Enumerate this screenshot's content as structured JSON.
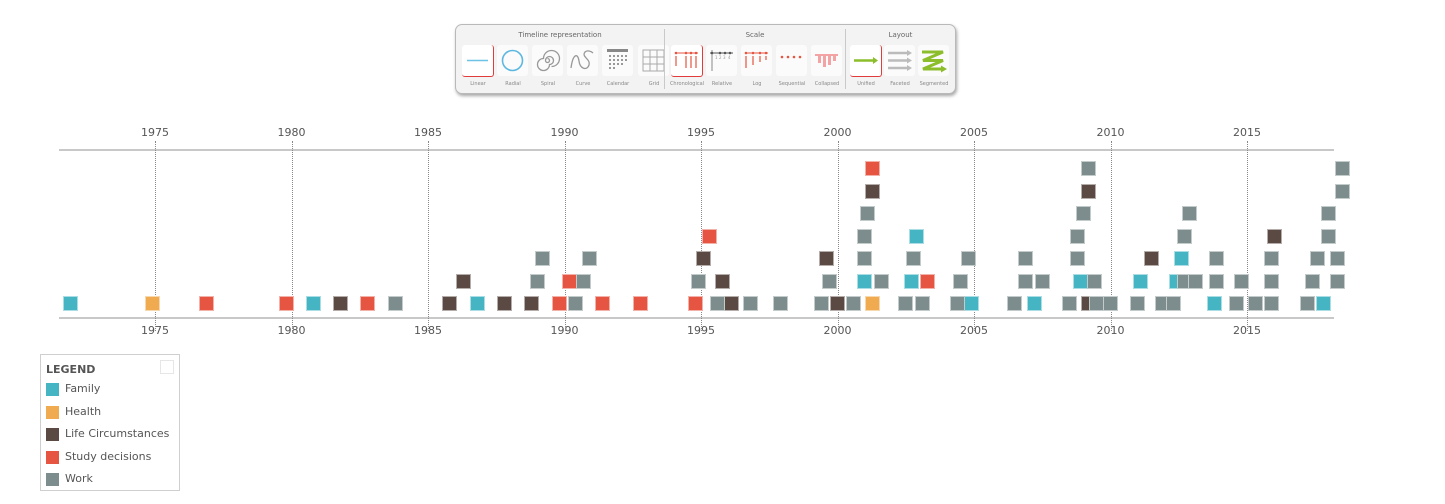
{
  "toolbar": {
    "groups": [
      {
        "title": "Timeline representation",
        "buttons": [
          {
            "label": "Linear",
            "icon": "linear-icon",
            "selected": true
          },
          {
            "label": "Radial",
            "icon": "radial-icon",
            "selected": false
          },
          {
            "label": "Spiral",
            "icon": "spiral-icon",
            "selected": false
          },
          {
            "label": "Curve",
            "icon": "curve-icon",
            "selected": false
          },
          {
            "label": "Calendar",
            "icon": "calendar-icon",
            "selected": false
          },
          {
            "label": "Grid",
            "icon": "grid-icon",
            "selected": false
          }
        ]
      },
      {
        "title": "Scale",
        "buttons": [
          {
            "label": "Chronological",
            "icon": "chronological-icon",
            "selected": true
          },
          {
            "label": "Relative",
            "icon": "relative-icon",
            "selected": false
          },
          {
            "label": "Log",
            "icon": "log-icon",
            "selected": false
          },
          {
            "label": "Sequential",
            "icon": "sequential-icon",
            "selected": false
          },
          {
            "label": "Collapsed",
            "icon": "collapsed-icon",
            "selected": false
          }
        ]
      },
      {
        "title": "Layout",
        "buttons": [
          {
            "label": "Unified",
            "icon": "unified-icon",
            "selected": true
          },
          {
            "label": "Faceted",
            "icon": "faceted-icon",
            "selected": false
          },
          {
            "label": "Segmented",
            "icon": "segmented-icon",
            "selected": false
          }
        ]
      }
    ]
  },
  "colors": {
    "Family": "#45b5c4",
    "Health": "#f0aa4f",
    "Life Circumstances": "#5b4a43",
    "Study decisions": "#e55541",
    "Work": "#7d8c8c",
    "accent_selected": "#e23b3b"
  },
  "legend": {
    "title": "LEGEND",
    "items": [
      {
        "label": "Family",
        "color": "#45b5c4"
      },
      {
        "label": "Health",
        "color": "#f0aa4f"
      },
      {
        "label": "Life Circumstances",
        "color": "#5b4a43"
      },
      {
        "label": "Study decisions",
        "color": "#e55541"
      },
      {
        "label": "Work",
        "color": "#7d8c8c"
      }
    ]
  },
  "chart_data": {
    "type": "scatter",
    "title": "",
    "xlabel": "",
    "ylabel": "",
    "x_ticks": [
      1975,
      1980,
      1985,
      1990,
      1995,
      2000,
      2005,
      2010,
      2015
    ],
    "xlim": [
      1971.9,
      2018.6
    ],
    "grid": "vertical dotted at ticks",
    "legend_position": "bottom-left",
    "series": [
      {
        "name": "Family",
        "events": [
          [
            1971.9,
            0
          ],
          [
            1980.8,
            0
          ],
          [
            1986.8,
            0
          ],
          [
            2001.0,
            1
          ],
          [
            2002.7,
            1
          ],
          [
            2002.9,
            3
          ],
          [
            2004.9,
            0
          ],
          [
            2007.2,
            0
          ],
          [
            2008.9,
            1
          ],
          [
            2011.1,
            1
          ],
          [
            2012.4,
            1
          ],
          [
            2012.6,
            2
          ],
          [
            2013.8,
            0
          ],
          [
            2017.8,
            0
          ]
        ]
      },
      {
        "name": "Health",
        "events": [
          [
            1974.9,
            0
          ],
          [
            2001.3,
            0
          ]
        ]
      },
      {
        "name": "Life Circumstances",
        "events": [
          [
            1981.8,
            0
          ],
          [
            1985.8,
            0
          ],
          [
            1986.3,
            1
          ],
          [
            1987.8,
            0
          ],
          [
            1988.8,
            0
          ],
          [
            1995.1,
            2
          ],
          [
            1995.8,
            1
          ],
          [
            1996.1,
            0
          ],
          [
            1999.6,
            2
          ],
          [
            2000.0,
            0
          ],
          [
            2001.3,
            5
          ],
          [
            2009.2,
            0
          ],
          [
            2009.2,
            5
          ],
          [
            2011.5,
            2
          ],
          [
            2016.0,
            3
          ]
        ]
      },
      {
        "name": "Study decisions",
        "events": [
          [
            1976.9,
            0
          ],
          [
            1979.8,
            0
          ],
          [
            1982.8,
            0
          ],
          [
            1989.8,
            0
          ],
          [
            1990.2,
            1
          ],
          [
            1991.4,
            0
          ],
          [
            1992.8,
            0
          ],
          [
            1994.8,
            0
          ],
          [
            1995.3,
            3
          ],
          [
            2001.3,
            6
          ],
          [
            2003.3,
            1
          ]
        ]
      },
      {
        "name": "Work",
        "events": [
          [
            1983.8,
            0
          ],
          [
            1989.0,
            1
          ],
          [
            1989.2,
            2
          ],
          [
            1990.4,
            0
          ],
          [
            1990.7,
            1
          ],
          [
            1990.9,
            2
          ],
          [
            1994.9,
            1
          ],
          [
            1995.6,
            0
          ],
          [
            1996.8,
            0
          ],
          [
            1997.9,
            0
          ],
          [
            1999.4,
            0
          ],
          [
            1999.7,
            1
          ],
          [
            2000.6,
            0
          ],
          [
            2001.0,
            2
          ],
          [
            2001.0,
            3
          ],
          [
            2001.1,
            4
          ],
          [
            2001.6,
            1
          ],
          [
            2002.5,
            0
          ],
          [
            2002.8,
            2
          ],
          [
            2003.1,
            0
          ],
          [
            2004.4,
            0
          ],
          [
            2004.5,
            1
          ],
          [
            2004.8,
            2
          ],
          [
            2006.5,
            0
          ],
          [
            2006.9,
            1
          ],
          [
            2006.9,
            2
          ],
          [
            2007.5,
            1
          ],
          [
            2008.5,
            0
          ],
          [
            2008.8,
            2
          ],
          [
            2008.8,
            3
          ],
          [
            2009.0,
            4
          ],
          [
            2009.2,
            6
          ],
          [
            2009.5,
            0
          ],
          [
            2009.4,
            1
          ],
          [
            2010.0,
            0
          ],
          [
            2011.0,
            0
          ],
          [
            2011.9,
            0
          ],
          [
            2012.3,
            0
          ],
          [
            2012.7,
            1
          ],
          [
            2012.7,
            3
          ],
          [
            2012.9,
            4
          ],
          [
            2013.1,
            1
          ],
          [
            2013.9,
            1
          ],
          [
            2013.9,
            2
          ],
          [
            2014.6,
            0
          ],
          [
            2014.8,
            1
          ],
          [
            2015.3,
            0
          ],
          [
            2015.9,
            0
          ],
          [
            2015.9,
            1
          ],
          [
            2015.9,
            2
          ],
          [
            2017.2,
            0
          ],
          [
            2017.4,
            1
          ],
          [
            2017.6,
            2
          ],
          [
            2018.0,
            3
          ],
          [
            2018.0,
            4
          ],
          [
            2018.3,
            1
          ],
          [
            2018.3,
            2
          ],
          [
            2018.5,
            5
          ],
          [
            2018.5,
            6
          ]
        ]
      }
    ]
  }
}
